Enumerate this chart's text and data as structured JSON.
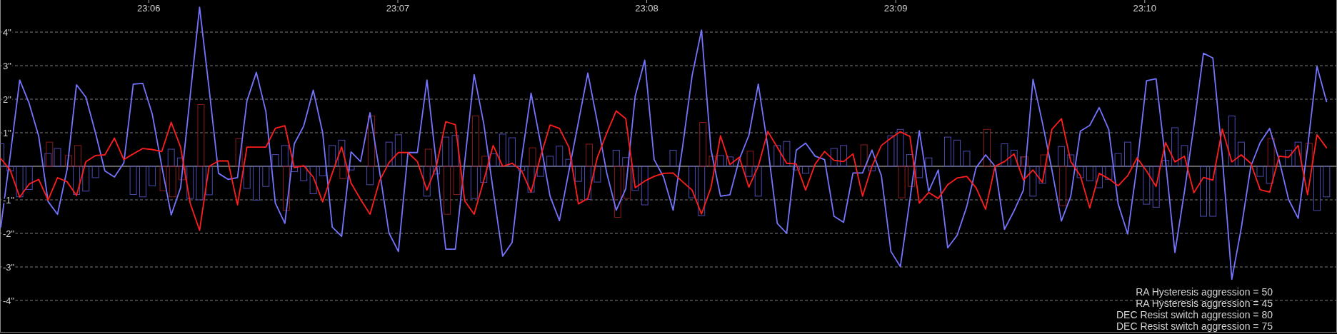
{
  "chart_data": {
    "type": "line",
    "x": [
      23.09009,
      23.09072,
      23.09136,
      23.09199,
      23.09263,
      23.09326,
      23.09389,
      23.09453,
      23.09516,
      23.09579,
      23.09643,
      23.09706,
      23.0977,
      23.09833,
      23.09896,
      23.0996,
      23.10023,
      23.10087,
      23.1015,
      23.10213,
      23.10277,
      23.1034,
      23.10404,
      23.10467,
      23.1053,
      23.10594,
      23.10657,
      23.1072,
      23.10784,
      23.10847,
      23.10911,
      23.10974,
      23.11037,
      23.11101,
      23.11164,
      23.11228,
      23.11291,
      23.11354,
      23.11418,
      23.11481,
      23.11545,
      23.11608,
      23.11671,
      23.11735,
      23.11798,
      23.11862,
      23.11925,
      23.11988,
      23.12052,
      23.12115,
      23.12178,
      23.12242,
      23.12305,
      23.12369,
      23.12432,
      23.12495,
      23.12559,
      23.12622,
      23.12686,
      23.12749,
      23.12812,
      23.12876,
      23.12939,
      23.13003,
      23.13066,
      23.13129,
      23.13193,
      23.13256,
      23.1332,
      23.13383,
      23.13446,
      23.1351,
      23.13573,
      23.13637,
      23.137,
      23.13763,
      23.13827,
      23.1389,
      23.13953,
      23.14017,
      23.1408,
      23.14144,
      23.14207,
      23.1427,
      23.14334,
      23.14397,
      23.14461,
      23.14524,
      23.14587,
      23.14651,
      23.14714,
      23.14778,
      23.14841,
      23.14904,
      23.14968,
      23.15031,
      23.15095,
      23.15158,
      23.15221,
      23.15285,
      23.15348,
      23.15411,
      23.15475,
      23.15538,
      23.15602,
      23.15665,
      23.15728,
      23.15792,
      23.15855,
      23.15919,
      23.15982,
      23.16045,
      23.16109,
      23.16172,
      23.16236,
      23.16299,
      23.16362,
      23.16426,
      23.16489,
      23.16553,
      23.16616,
      23.16679,
      23.16743,
      23.16806,
      23.16869,
      23.16933,
      23.16996,
      23.1706,
      23.17123,
      23.17186,
      23.1725,
      23.17313,
      23.17377,
      23.1744,
      23.17503,
      23.17567,
      23.1763,
      23.17694,
      23.17757,
      23.1782,
      23.17884
    ],
    "series": [
      {
        "type": "bar",
        "color": "#4b4bb0",
        "values": [
          0.67,
          -0.14,
          -0.91,
          -0.69,
          null,
          0.38,
          0.53,
          null,
          -0.84,
          -0.74,
          -0.34,
          null,
          null,
          null,
          -0.84,
          -0.91,
          -0.58,
          null,
          0.51,
          0.25,
          -0.96,
          -1.0,
          -0.85,
          null,
          null,
          null,
          -0.66,
          -1.01,
          -0.6,
          0.35,
          0.62,
          -0.16,
          -0.43,
          -0.82,
          -0.28,
          0.62,
          0.78,
          -0.11,
          null,
          -0.55,
          null,
          0.72,
          0.94,
          null,
          null,
          -0.89,
          -0.23,
          0.87,
          0.92,
          null,
          -0.96,
          -0.48,
          0.37,
          0.96,
          0.85,
          -0.13,
          -0.77,
          -0.3,
          0.3,
          0.6,
          0.21,
          -0.45,
          -0.99,
          -0.47,
          null,
          0.48,
          0.26,
          -0.72,
          -1.15,
          null,
          null,
          0.48,
          null,
          -0.94,
          -1.47,
          null,
          0.32,
          0.28,
          null,
          -0.3,
          -0.89,
          null,
          0.62,
          0.74,
          -0.11,
          -0.21,
          null,
          null,
          0.53,
          0.62,
          null,
          null,
          -0.14,
          null,
          0.91,
          1.1,
          0.35,
          -0.34,
          0.25,
          null,
          0.87,
          0.78,
          0.45,
          null,
          null,
          null,
          0.67,
          0.48,
          0.28,
          -0.89,
          -0.51,
          null,
          0.59,
          0.34,
          -0.34,
          -0.43,
          -0.64,
          -0.39,
          0.38,
          0.72,
          null,
          -1.13,
          -1.22,
          0.18,
          1.15,
          0.62,
          null,
          -1.49,
          -1.49,
          null,
          1.5,
          0.72,
          null,
          -0.3,
          -0.51,
          null,
          0.48,
          0.72,
          null,
          -1.32,
          -0.91
        ]
      },
      {
        "type": "bar",
        "color": "#8a1c1c",
        "values": [
          null,
          null,
          null,
          null,
          null,
          0.72,
          null,
          0.32,
          0.62,
          null,
          null,
          null,
          null,
          null,
          null,
          null,
          null,
          -0.73,
          -0.91,
          -0.4,
          null,
          1.84,
          null,
          null,
          null,
          0.82,
          null,
          null,
          null,
          null,
          -1.31,
          null,
          null,
          null,
          null,
          null,
          -0.37,
          null,
          null,
          1.5,
          null,
          null,
          null,
          null,
          null,
          0.51,
          null,
          -1.43,
          -0.84,
          null,
          1.5,
          0.3,
          null,
          null,
          null,
          null,
          0.55,
          null,
          null,
          null,
          null,
          null,
          0.66,
          null,
          null,
          -1.52,
          -0.96,
          null,
          null,
          null,
          null,
          null,
          null,
          null,
          1.31,
          0.3,
          null,
          null,
          null,
          0.45,
          null,
          null,
          null,
          null,
          null,
          null,
          null,
          null,
          null,
          null,
          null,
          0.64,
          null,
          null,
          null,
          -0.94,
          -0.6,
          null,
          null,
          null,
          null,
          null,
          null,
          null,
          1.1,
          null,
          null,
          null,
          0.28,
          null,
          0.34,
          null,
          -1.17,
          null,
          null,
          null,
          null,
          null,
          null,
          null,
          null,
          null,
          null,
          null,
          null,
          null,
          null,
          null,
          null,
          null,
          null,
          null,
          null,
          null,
          0.83,
          null,
          null,
          null,
          0.69,
          null,
          null
        ]
      },
      {
        "color": "#7474ff",
        "values": [
          -1.81,
          0.3,
          2.57,
          1.88,
          0.9,
          -1.05,
          -1.43,
          -0.1,
          2.43,
          2.06,
          1.0,
          -0.14,
          -0.32,
          0.1,
          2.45,
          2.47,
          1.56,
          0.0,
          -1.45,
          -0.64,
          2.1,
          4.74,
          2.3,
          -0.21,
          -0.39,
          -0.34,
          1.95,
          2.8,
          1.63,
          -1.1,
          -1.7,
          0.67,
          1.2,
          2.27,
          1.0,
          -1.81,
          -2.09,
          0.43,
          0.14,
          1.6,
          -0.15,
          -1.99,
          -2.54,
          0.41,
          0.41,
          2.57,
          0.07,
          -2.47,
          -2.47,
          0.13,
          2.73,
          1.28,
          -0.71,
          -2.68,
          -2.27,
          0.2,
          2.18,
          0.71,
          -0.89,
          -1.62,
          -0.15,
          1.32,
          2.78,
          1.31,
          -0.21,
          -1.31,
          -0.67,
          2.09,
          3.16,
          0.2,
          -0.32,
          -1.31,
          0.57,
          2.7,
          4.06,
          0.5,
          -0.89,
          -0.85,
          0.21,
          0.92,
          2.45,
          0.57,
          -1.7,
          -2.0,
          0.48,
          0.69,
          0.3,
          0.2,
          -1.49,
          -1.67,
          -0.2,
          -0.2,
          0.48,
          -0.28,
          -2.54,
          -2.99,
          -1.0,
          1.06,
          -0.74,
          -0.11,
          -2.43,
          -2.06,
          -1.21,
          -0.04,
          0.34,
          0.0,
          -1.88,
          -1.33,
          -0.71,
          2.59,
          1.3,
          -0.09,
          -1.63,
          -0.89,
          1.05,
          1.22,
          1.75,
          1.1,
          -1.12,
          -2.02,
          0.03,
          2.55,
          2.61,
          0.18,
          -2.57,
          -0.75,
          1.2,
          3.37,
          3.23,
          0.3,
          -3.37,
          -1.85,
          0.0,
          0.71,
          1.13,
          0.18,
          -0.99,
          -1.55,
          0.55,
          2.98,
          1.93
        ]
      },
      {
        "color": "#ff1e1e",
        "values": [
          0.23,
          -0.11,
          -0.92,
          -0.53,
          -0.39,
          -1.01,
          -0.34,
          -0.46,
          -0.87,
          0.14,
          0.32,
          0.34,
          0.84,
          0.2,
          0.37,
          0.53,
          0.5,
          0.44,
          1.31,
          0.57,
          -1.1,
          -1.91,
          0.0,
          0.16,
          0.16,
          -1.15,
          0.57,
          0.57,
          0.57,
          1.13,
          1.21,
          -0.04,
          0.02,
          -0.32,
          -1.06,
          -0.21,
          0.58,
          -0.5,
          -0.99,
          -1.43,
          -0.43,
          0.11,
          0.41,
          0.41,
          0.14,
          -0.71,
          0.0,
          1.33,
          1.24,
          -1.03,
          -1.43,
          -0.43,
          0.62,
          0.0,
          0.09,
          -0.13,
          -0.77,
          0.28,
          1.23,
          1.13,
          0.57,
          -1.12,
          -0.96,
          0.27,
          0.99,
          1.65,
          1.42,
          -0.64,
          -0.44,
          -0.3,
          -0.21,
          -0.2,
          -0.46,
          -0.71,
          -1.42,
          -0.64,
          0.91,
          0.05,
          0.27,
          -0.62,
          0.0,
          1.04,
          0.57,
          0.09,
          0.07,
          -0.71,
          0.07,
          0.44,
          0.18,
          0.14,
          0.37,
          -0.89,
          0.0,
          0.62,
          0.84,
          1.03,
          0.89,
          -1.1,
          -0.78,
          -0.96,
          -0.55,
          -0.35,
          -0.3,
          -0.64,
          -1.28,
          0.0,
          0.14,
          0.37,
          -0.41,
          -0.11,
          -0.48,
          1.1,
          1.42,
          0.14,
          -0.28,
          -1.24,
          -0.21,
          -0.37,
          -0.58,
          -0.28,
          0.25,
          -0.14,
          -0.6,
          0.71,
          0.13,
          0.3,
          -0.79,
          -0.33,
          -0.41,
          1.11,
          0.13,
          0.34,
          0.09,
          -0.7,
          -0.77,
          0.3,
          0.27,
          0.62,
          -0.85,
          0.94,
          0.55
        ]
      }
    ],
    "xlim": [
      23.09004,
      23.17954
    ],
    "xticks": [
      {
        "value": 23.1,
        "label": "23:06"
      },
      {
        "value": 23.11667,
        "label": "23:07"
      },
      {
        "value": 23.13333,
        "label": "23:08"
      },
      {
        "value": 23.15,
        "label": "23:09"
      },
      {
        "value": 23.16667,
        "label": "23:10"
      }
    ],
    "ylim": [
      -5,
      5
    ],
    "yticks": [
      {
        "value": 4,
        "label": "4\""
      },
      {
        "value": 3,
        "label": "3\""
      },
      {
        "value": 2,
        "label": "2\""
      },
      {
        "value": 1,
        "label": "1\""
      },
      {
        "value": -1,
        "label": "-1\""
      },
      {
        "value": -2,
        "label": "-2\""
      },
      {
        "value": -3,
        "label": "-3\""
      },
      {
        "value": -4,
        "label": "-4\""
      }
    ],
    "grid": "y",
    "ref_lines": [
      {
        "axis": "y",
        "value": 0,
        "color": "#c8c8c8"
      }
    ],
    "annotations": [
      "RA Hysteresis aggression = 50",
      "RA Hysteresis aggression = 45",
      "DEC Resist switch aggression = 80",
      "DEC Resist switch aggression = 75"
    ]
  }
}
